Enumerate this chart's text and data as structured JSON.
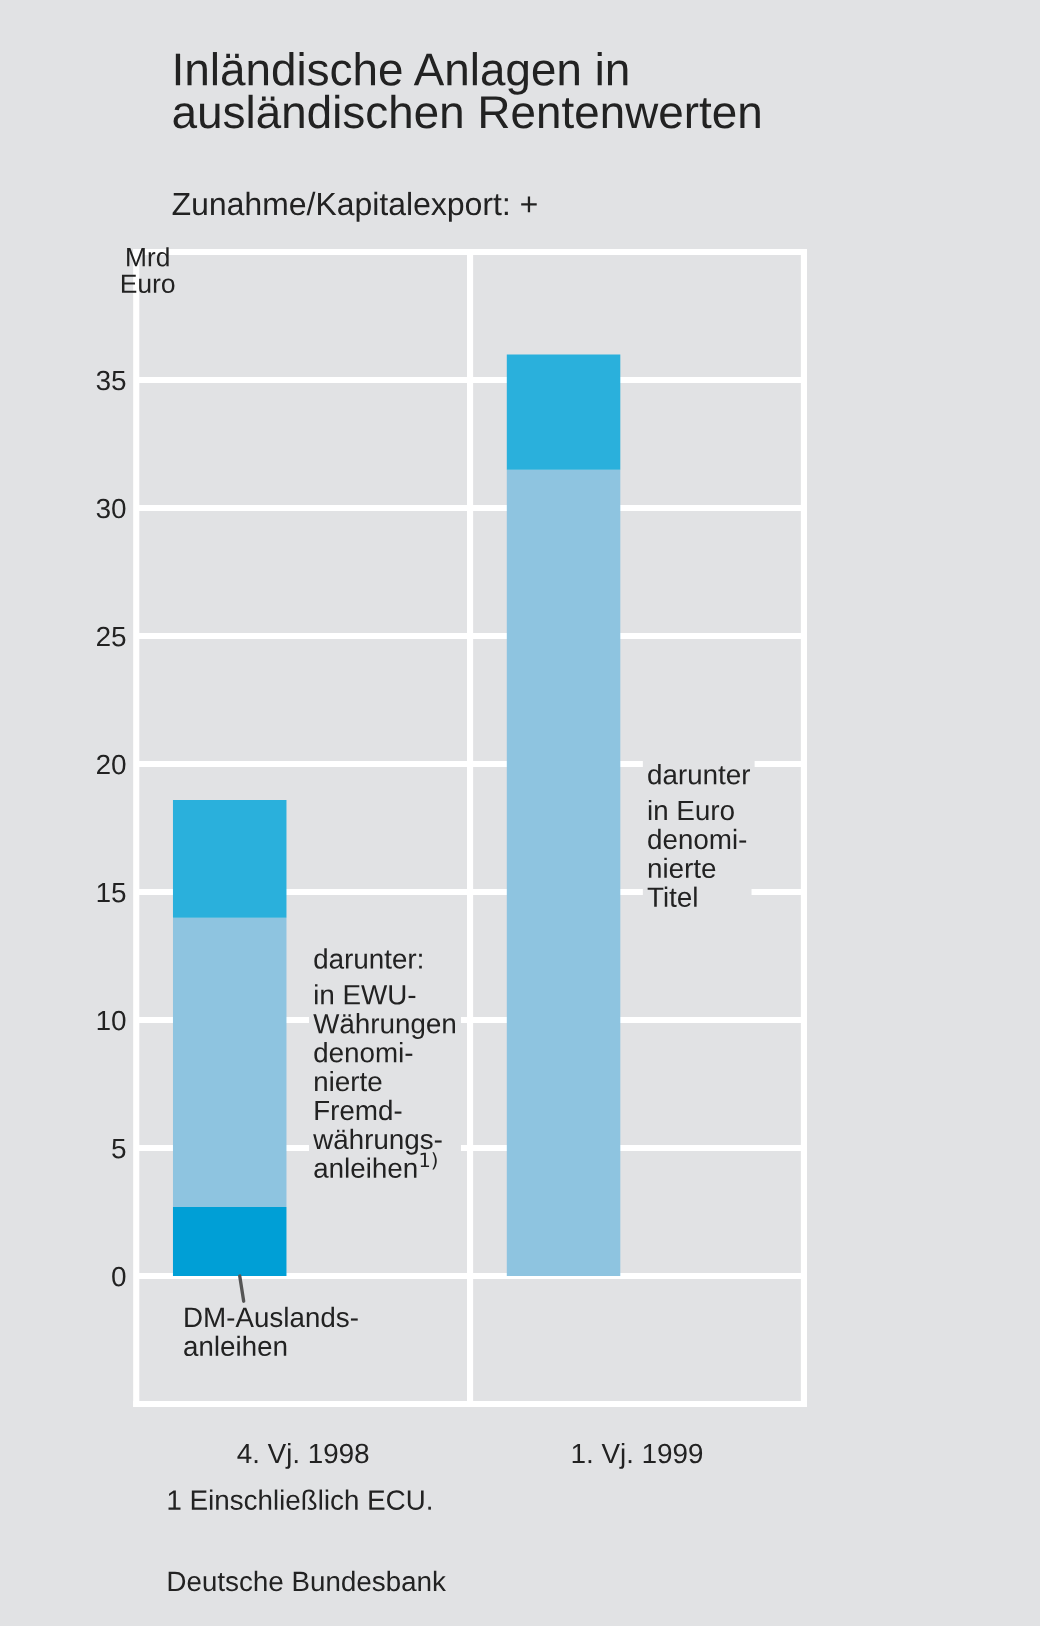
{
  "chart_data": {
    "type": "bar",
    "title": "Inländische Anlagen in\nausländischen Rentenwerten",
    "subtitle": "Zunahme/Kapitalexport: +",
    "ylabel": "Mrd\nEuro",
    "categories": [
      "4. Vj. 1998",
      "1. Vj. 1999"
    ],
    "stacked": true,
    "series": [
      {
        "color": "#009fd6",
        "values": [
          2.7,
          0
        ]
      },
      {
        "color": "#8ec4e0",
        "values": [
          11.3,
          31.5
        ]
      },
      {
        "color": "#2ab0dc",
        "values": [
          4.6,
          4.5
        ]
      }
    ],
    "ylim": [
      -5,
      40
    ],
    "yticks": [
      0,
      5,
      10,
      15,
      20,
      25,
      30,
      35
    ],
    "grid": "y",
    "annotations": [
      "DM-Auslands-\nanleihen",
      "darunter:",
      "in EWU-\nWährungen\ndenomi-\nnierte\nFremd-\nwährungs-\nanleihen$^{1)}$",
      "darunter",
      "in Euro\ndenomi-\nnierte\nTitel",
      "1 Einschließlich ECU.",
      "Deutsche Bundesbank"
    ]
  }
}
